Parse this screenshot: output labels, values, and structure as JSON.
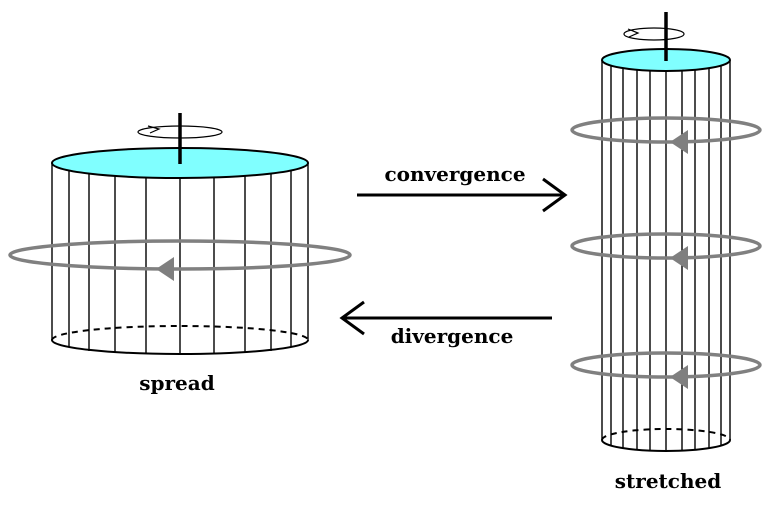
{
  "labels": {
    "spread": "spread",
    "stretched": "stretched",
    "convergence": "convergence",
    "divergence": "divergence"
  },
  "colors": {
    "top_fill": "#80ffff",
    "line": "#000000",
    "ring": "#808080",
    "ring_arrow": "#7f7f7f",
    "background": "#ffffff"
  }
}
